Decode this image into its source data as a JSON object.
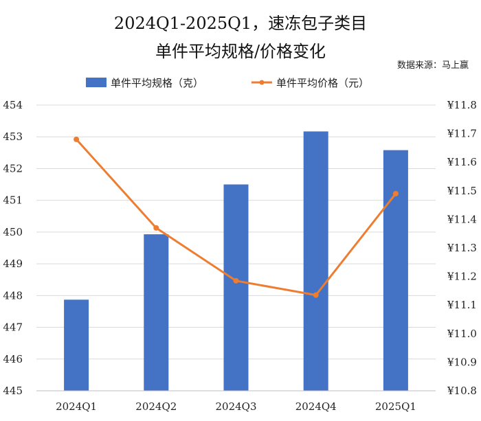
{
  "chart_data": {
    "type": "bar",
    "title_line1": "2024Q1-2025Q1，速冻包子类目",
    "title_line2": "单件平均规格/价格变化",
    "source": "数据来源：马上赢",
    "categories": [
      "2024Q1",
      "2024Q2",
      "2024Q3",
      "2024Q4",
      "2025Q1"
    ],
    "series": [
      {
        "name": "单件平均规格（克）",
        "kind": "bar",
        "axis": "left",
        "color": "#4472C4",
        "values": [
          447.87,
          449.93,
          451.5,
          453.17,
          452.58
        ]
      },
      {
        "name": "单件平均价格（元）",
        "kind": "line",
        "axis": "right",
        "color": "#ED7D31",
        "values": [
          11.68,
          11.37,
          11.185,
          11.135,
          11.49
        ]
      }
    ],
    "y_left": {
      "min": 445,
      "max": 454,
      "ticks": [
        "445",
        "446",
        "447",
        "448",
        "449",
        "450",
        "451",
        "452",
        "453",
        "454"
      ]
    },
    "y_right": {
      "min": 10.8,
      "max": 11.8,
      "ticks": [
        "¥10.8",
        "¥10.9",
        "¥11.0",
        "¥11.1",
        "¥11.2",
        "¥11.3",
        "¥11.4",
        "¥11.5",
        "¥11.6",
        "¥11.7",
        "¥11.8"
      ]
    },
    "grid": true,
    "legend_position": "top"
  }
}
